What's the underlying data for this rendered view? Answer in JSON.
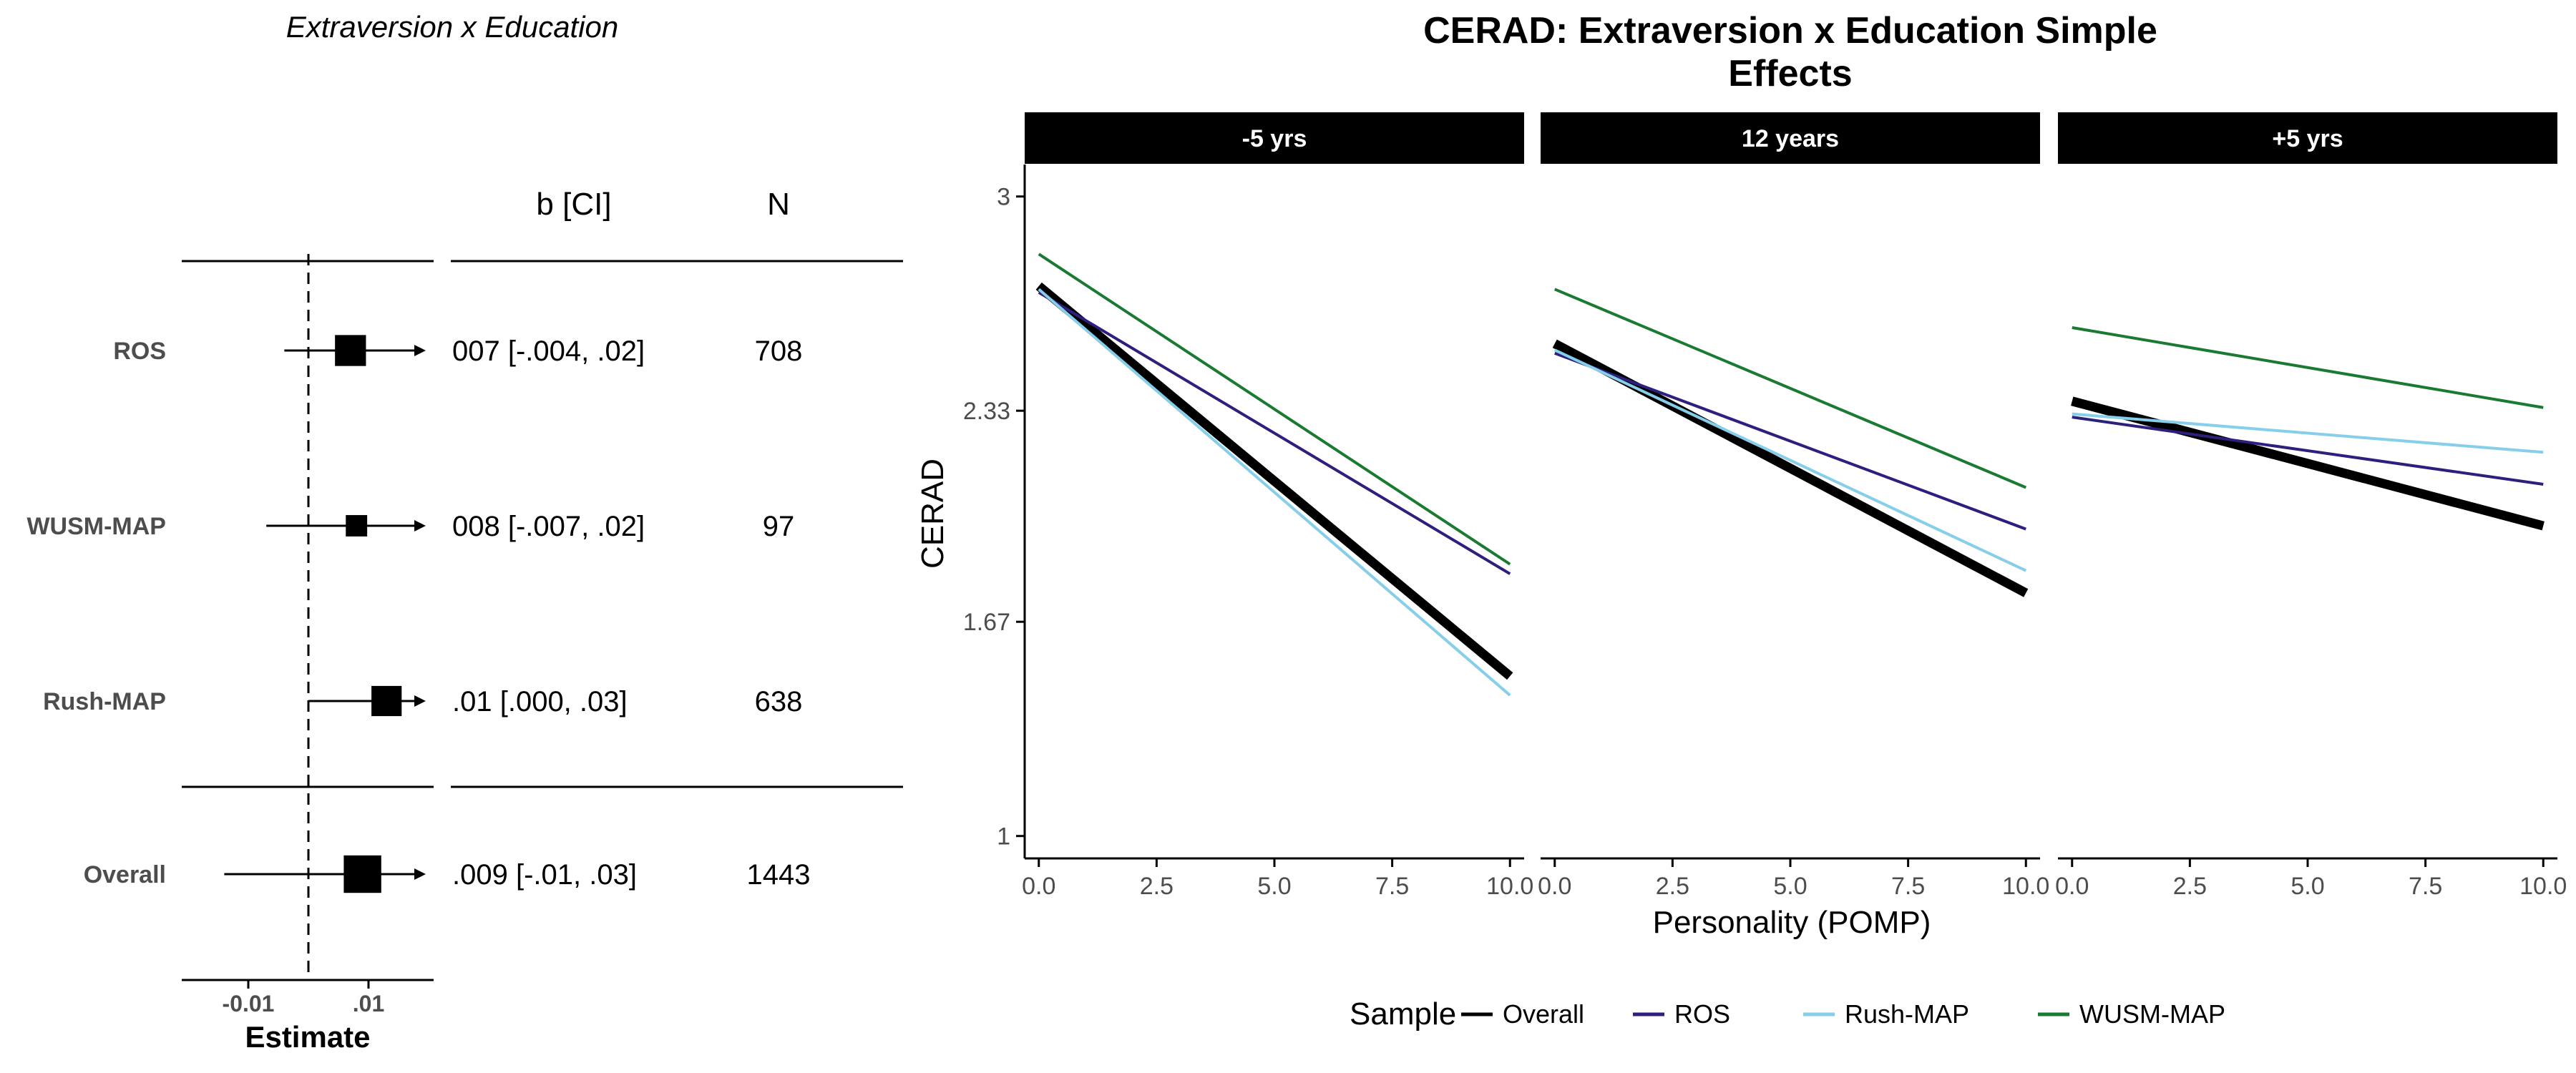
{
  "forest_plot": {
    "title": "Extraversion x Education",
    "col_b_header": "b [CI]",
    "col_n_header": "N",
    "xlabel": "Estimate",
    "x_ticks": [
      {
        "value": -0.01,
        "label": "-0.01"
      },
      {
        "value": 0.01,
        "label": ".01"
      }
    ],
    "reference_line": 0,
    "rows": [
      {
        "label": "ROS",
        "estimate": 0.007,
        "ci_low": -0.004,
        "ci_high": 0.02,
        "b_ci": "007 [-.004, .02]",
        "n": "708",
        "n_value": 708
      },
      {
        "label": "WUSM-MAP",
        "estimate": 0.008,
        "ci_low": -0.007,
        "ci_high": 0.02,
        "b_ci": "008 [-.007, .02]",
        "n": "97",
        "n_value": 97
      },
      {
        "label": "Rush-MAP",
        "estimate": 0.013,
        "ci_low": 0.0,
        "ci_high": 0.03,
        "b_ci": ".01 [.000, .03]",
        "n": "638",
        "n_value": 638
      },
      {
        "label": "Overall",
        "estimate": 0.009,
        "ci_low": -0.014,
        "ci_high": 0.03,
        "b_ci": ".009 [-.01, .03]",
        "n": "1443",
        "n_value": 1443
      }
    ]
  },
  "chart_data": {
    "type": "line",
    "title": "CERAD: Extraversion x Education Simple Effects",
    "title_lines": [
      "CERAD: Extraversion x Education Simple",
      "Effects"
    ],
    "xlabel": "Personality (POMP)",
    "ylabel": "CERAD",
    "xlim": [
      -0.3,
      10.3
    ],
    "ylim": [
      0.93,
      3.1
    ],
    "x_ticks": [
      {
        "value": 0,
        "label": "0.0"
      },
      {
        "value": 2.5,
        "label": "2.5"
      },
      {
        "value": 5,
        "label": "5.0"
      },
      {
        "value": 7.5,
        "label": "7.5"
      },
      {
        "value": 10,
        "label": "10.0"
      }
    ],
    "y_ticks": [
      {
        "value": 1,
        "label": "1"
      },
      {
        "value": 1.67,
        "label": "1.67"
      },
      {
        "value": 2.33,
        "label": "2.33"
      },
      {
        "value": 3,
        "label": "3"
      }
    ],
    "legend": {
      "title": "Sample",
      "position": "bottom"
    },
    "series_styles": [
      {
        "name": "Overall",
        "color": "#000000",
        "width": 13
      },
      {
        "name": "ROS",
        "color": "#2d1f7e",
        "width": 4
      },
      {
        "name": "Rush-MAP",
        "color": "#87ceeb",
        "width": 4
      },
      {
        "name": "WUSM-MAP",
        "color": "#1a7a32",
        "width": 4
      }
    ],
    "panels": [
      {
        "label": "-5 yrs",
        "series": [
          {
            "name": "Overall",
            "x": [
              0,
              10
            ],
            "y": [
              2.72,
              1.5
            ]
          },
          {
            "name": "ROS",
            "x": [
              0,
              10
            ],
            "y": [
              2.7,
              1.82
            ]
          },
          {
            "name": "Rush-MAP",
            "x": [
              0,
              10
            ],
            "y": [
              2.71,
              1.44
            ]
          },
          {
            "name": "WUSM-MAP",
            "x": [
              0,
              10
            ],
            "y": [
              2.82,
              1.85
            ]
          }
        ]
      },
      {
        "label": "12 years",
        "series": [
          {
            "name": "Overall",
            "x": [
              0,
              10
            ],
            "y": [
              2.54,
              1.76
            ]
          },
          {
            "name": "ROS",
            "x": [
              0,
              10
            ],
            "y": [
              2.51,
              1.96
            ]
          },
          {
            "name": "Rush-MAP",
            "x": [
              0,
              10
            ],
            "y": [
              2.52,
              1.83
            ]
          },
          {
            "name": "WUSM-MAP",
            "x": [
              0,
              10
            ],
            "y": [
              2.71,
              2.09
            ]
          }
        ]
      },
      {
        "label": "+5 yrs",
        "series": [
          {
            "name": "Overall",
            "x": [
              0,
              10
            ],
            "y": [
              2.36,
              1.97
            ]
          },
          {
            "name": "ROS",
            "x": [
              0,
              10
            ],
            "y": [
              2.31,
              2.1
            ]
          },
          {
            "name": "Rush-MAP",
            "x": [
              0,
              10
            ],
            "y": [
              2.32,
              2.2
            ]
          },
          {
            "name": "WUSM-MAP",
            "x": [
              0,
              10
            ],
            "y": [
              2.59,
              2.34
            ]
          }
        ]
      }
    ]
  }
}
